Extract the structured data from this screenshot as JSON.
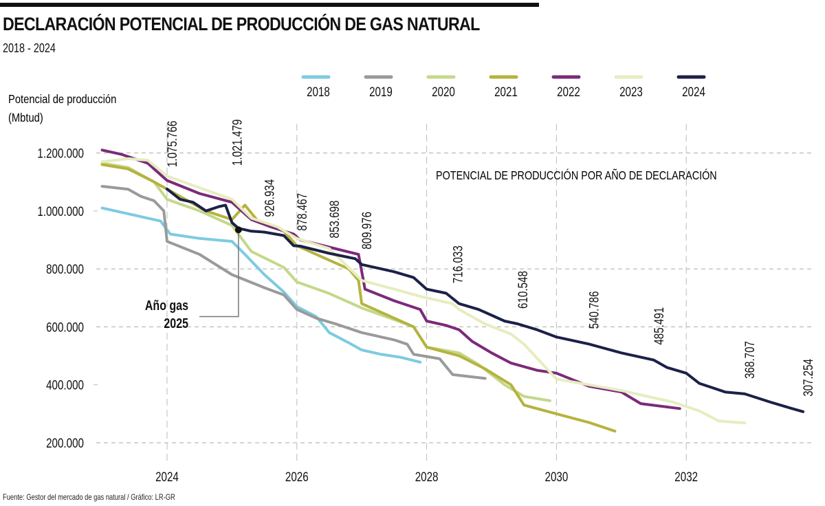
{
  "header": {
    "title": "DECLARACIÓN POTENCIAL DE PRODUCCIÓN DE GAS NATURAL",
    "subtitle": "2018 - 2024"
  },
  "footer": {
    "source": "Fuente: Gestor del mercado de gas natural / Gráfico: LR-GR"
  },
  "chart_data": {
    "type": "line",
    "title": "DECLARACIÓN POTENCIAL DE PRODUCCIÓN DE GAS NATURAL",
    "subtitle": "2018 - 2024",
    "ylabel": "Potencial de producción (Mbtud)",
    "xlabel": "",
    "annotation_title": "POTENCIAL DE PRODUCCIÓN POR AÑO DE DECLARACIÓN",
    "xlim": [
      2023.0,
      2033.9
    ],
    "ylim": [
      150000,
      1300000
    ],
    "x_ticks": [
      2024,
      2026,
      2028,
      2030,
      2032
    ],
    "x_tick_labels": [
      "2024",
      "2026",
      "2028",
      "2030",
      "2032"
    ],
    "y_ticks": [
      200000,
      400000,
      600000,
      800000,
      1000000,
      1200000
    ],
    "y_tick_labels": [
      "200.000",
      "400.000",
      "600.000",
      "800.000",
      "1.000.000",
      "1.200.000"
    ],
    "grid": true,
    "legend_position": "top",
    "marker": {
      "label_line1": "Año gas",
      "label_line2": "2025",
      "x": 2025.1,
      "y": 935000
    },
    "value_labels": [
      {
        "x": 2024.0,
        "text": "1.075.766"
      },
      {
        "x": 2025.0,
        "text": "1.021.479"
      },
      {
        "x": 2025.5,
        "text": "926.934"
      },
      {
        "x": 2026.0,
        "text": "878.467"
      },
      {
        "x": 2026.5,
        "text": "853.698"
      },
      {
        "x": 2027.0,
        "text": "809.976"
      },
      {
        "x": 2028.4,
        "text": "716.033"
      },
      {
        "x": 2029.4,
        "text": "610.548"
      },
      {
        "x": 2030.5,
        "text": "540.786"
      },
      {
        "x": 2031.5,
        "text": "485.491"
      },
      {
        "x": 2032.9,
        "text": "368.707"
      },
      {
        "x": 2033.8,
        "text": "307.254"
      }
    ],
    "series": [
      {
        "name": "2018",
        "color": "#7ccbe0",
        "x": [
          2023.0,
          2023.5,
          2023.9,
          2024.05,
          2024.5,
          2025.0,
          2025.2,
          2025.5,
          2025.8,
          2026.0,
          2026.3,
          2026.5,
          2026.8,
          2027.0,
          2027.3,
          2027.6,
          2027.9
        ],
        "y": [
          1010000,
          985000,
          965000,
          920000,
          905000,
          895000,
          850000,
          780000,
          720000,
          670000,
          635000,
          580000,
          545000,
          520000,
          505000,
          495000,
          478000
        ]
      },
      {
        "name": "2019",
        "color": "#9a9a9a",
        "x": [
          2023.0,
          2023.4,
          2023.6,
          2023.8,
          2023.95,
          2024.0,
          2024.5,
          2025.0,
          2025.5,
          2025.8,
          2026.0,
          2026.3,
          2026.6,
          2027.0,
          2027.5,
          2027.7,
          2027.8,
          2028.2,
          2028.4,
          2028.9
        ],
        "y": [
          1085000,
          1075000,
          1050000,
          1035000,
          1000000,
          895000,
          850000,
          780000,
          735000,
          710000,
          660000,
          630000,
          610000,
          580000,
          555000,
          540000,
          505000,
          490000,
          435000,
          422000
        ]
      },
      {
        "name": "2020",
        "color": "#c4d88a",
        "x": [
          2023.0,
          2023.4,
          2023.8,
          2024.0,
          2024.5,
          2025.0,
          2025.3,
          2025.8,
          2026.0,
          2026.5,
          2027.0,
          2027.5,
          2027.8,
          2028.0,
          2028.5,
          2028.8,
          2029.2,
          2029.5,
          2029.9
        ],
        "y": [
          1165000,
          1150000,
          1100000,
          1040000,
          1000000,
          950000,
          860000,
          805000,
          755000,
          715000,
          665000,
          625000,
          600000,
          530000,
          510000,
          470000,
          400000,
          360000,
          345000
        ]
      },
      {
        "name": "2021",
        "color": "#b5b33e",
        "x": [
          2023.0,
          2023.4,
          2023.8,
          2024.2,
          2024.6,
          2025.0,
          2025.2,
          2025.4,
          2025.8,
          2026.0,
          2026.2,
          2026.5,
          2026.8,
          2026.95,
          2027.0,
          2027.3,
          2027.8,
          2028.0,
          2028.5,
          2028.9,
          2029.3,
          2029.5,
          2030.0,
          2030.5,
          2030.9
        ],
        "y": [
          1160000,
          1145000,
          1100000,
          1050000,
          1000000,
          970000,
          1020000,
          965000,
          930000,
          880000,
          860000,
          830000,
          800000,
          760000,
          680000,
          650000,
          600000,
          530000,
          500000,
          455000,
          400000,
          330000,
          300000,
          270000,
          240000
        ]
      },
      {
        "name": "2022",
        "color": "#7b2a7a",
        "x": [
          2023.0,
          2023.3,
          2023.7,
          2024.0,
          2024.5,
          2025.0,
          2025.3,
          2025.6,
          2025.95,
          2026.05,
          2026.5,
          2026.95,
          2027.05,
          2027.5,
          2027.9,
          2028.0,
          2028.3,
          2028.5,
          2028.7,
          2029.0,
          2029.3,
          2029.7,
          2030.0,
          2030.5,
          2031.0,
          2031.3,
          2031.9
        ],
        "y": [
          1210000,
          1195000,
          1165000,
          1105000,
          1060000,
          1030000,
          970000,
          945000,
          920000,
          900000,
          875000,
          850000,
          730000,
          690000,
          660000,
          620000,
          605000,
          590000,
          550000,
          510000,
          475000,
          450000,
          440000,
          395000,
          375000,
          335000,
          318000
        ]
      },
      {
        "name": "2023",
        "color": "#e6edbf",
        "x": [
          2023.0,
          2023.4,
          2023.7,
          2024.0,
          2024.5,
          2025.0,
          2025.3,
          2025.7,
          2026.0,
          2026.5,
          2027.0,
          2027.5,
          2027.9,
          2028.2,
          2028.4,
          2028.5,
          2028.9,
          2029.3,
          2029.5,
          2030.0,
          2030.5,
          2031.0,
          2031.8,
          2032.2,
          2032.5,
          2032.9
        ],
        "y": [
          1170000,
          1180000,
          1175000,
          1120000,
          1080000,
          1040000,
          975000,
          945000,
          905000,
          870000,
          760000,
          730000,
          705000,
          690000,
          680000,
          660000,
          610000,
          575000,
          540000,
          420000,
          400000,
          380000,
          340000,
          310000,
          275000,
          268000
        ]
      },
      {
        "name": "2024",
        "color": "#1b2147",
        "x": [
          2024.0,
          2024.2,
          2024.4,
          2024.6,
          2024.8,
          2024.9,
          2025.0,
          2025.1,
          2025.3,
          2025.5,
          2025.8,
          2025.95,
          2026.05,
          2026.5,
          2026.9,
          2027.0,
          2027.3,
          2027.5,
          2027.8,
          2028.0,
          2028.3,
          2028.5,
          2028.8,
          2029.0,
          2029.2,
          2029.4,
          2029.7,
          2030.0,
          2030.5,
          2031.0,
          2031.5,
          2031.7,
          2032.0,
          2032.2,
          2032.4,
          2032.6,
          2032.9,
          2033.3,
          2033.6,
          2033.8
        ],
        "y": [
          1075766,
          1040000,
          1030000,
          1000000,
          1015000,
          1020000,
          960000,
          940000,
          930000,
          926934,
          915000,
          880000,
          878467,
          853698,
          835000,
          815000,
          800000,
          790000,
          770000,
          730000,
          716033,
          680000,
          660000,
          640000,
          620000,
          610548,
          590000,
          565000,
          540786,
          510000,
          485491,
          460000,
          440000,
          405000,
          390000,
          375000,
          368707,
          340000,
          320000,
          307254
        ]
      }
    ]
  }
}
